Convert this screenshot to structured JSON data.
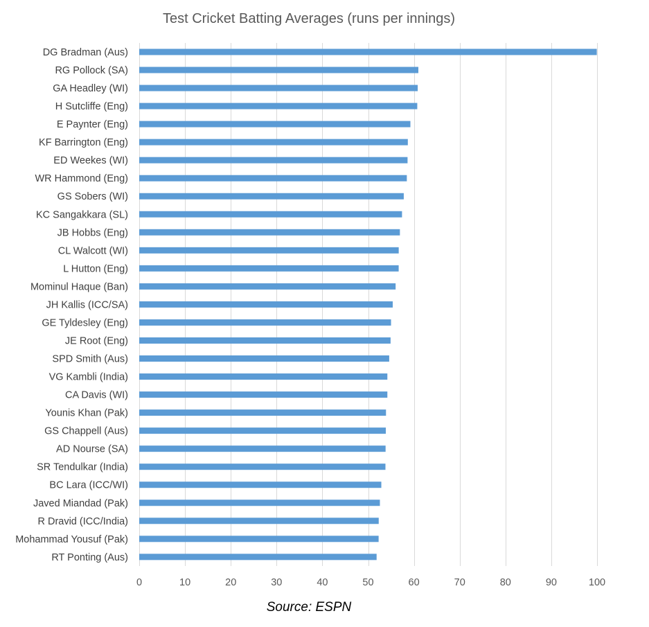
{
  "chart_data": {
    "type": "bar",
    "orientation": "horizontal",
    "title": "Test Cricket Batting Averages (runs per innings)",
    "categories": [
      "DG Bradman (Aus)",
      "RG Pollock (SA)",
      "GA Headley (WI)",
      "H Sutcliffe (Eng)",
      "E Paynter (Eng)",
      "KF Barrington (Eng)",
      "ED Weekes (WI)",
      "WR Hammond (Eng)",
      "GS Sobers (WI)",
      "KC Sangakkara (SL)",
      "JB Hobbs (Eng)",
      "CL Walcott (WI)",
      "L Hutton (Eng)",
      "Mominul Haque (Ban)",
      "JH Kallis (ICC/SA)",
      "GE Tyldesley (Eng)",
      "JE Root (Eng)",
      "SPD Smith (Aus)",
      "VG Kambli (India)",
      "CA Davis (WI)",
      "Younis Khan (Pak)",
      "GS Chappell (Aus)",
      "AD Nourse (SA)",
      "SR Tendulkar (India)",
      "BC Lara (ICC/WI)",
      "Javed Miandad (Pak)",
      "R Dravid (ICC/India)",
      "Mohammad Yousuf (Pak)",
      "RT Ponting (Aus)"
    ],
    "values": [
      99.94,
      60.97,
      60.83,
      60.73,
      59.23,
      58.67,
      58.61,
      58.45,
      57.78,
      57.4,
      56.94,
      56.68,
      56.67,
      56.0,
      55.37,
      55.0,
      54.9,
      54.6,
      54.2,
      54.2,
      53.9,
      53.86,
      53.81,
      53.78,
      52.88,
      52.57,
      52.31,
      52.29,
      51.85
    ],
    "xlim": [
      0,
      100
    ],
    "xticks": [
      "0",
      "10",
      "20",
      "30",
      "40",
      "50",
      "60",
      "70",
      "80",
      "90",
      "100"
    ],
    "grid": true,
    "bar_color": "#5b9bd5"
  },
  "footer": {
    "source": "Source: ESPN"
  }
}
